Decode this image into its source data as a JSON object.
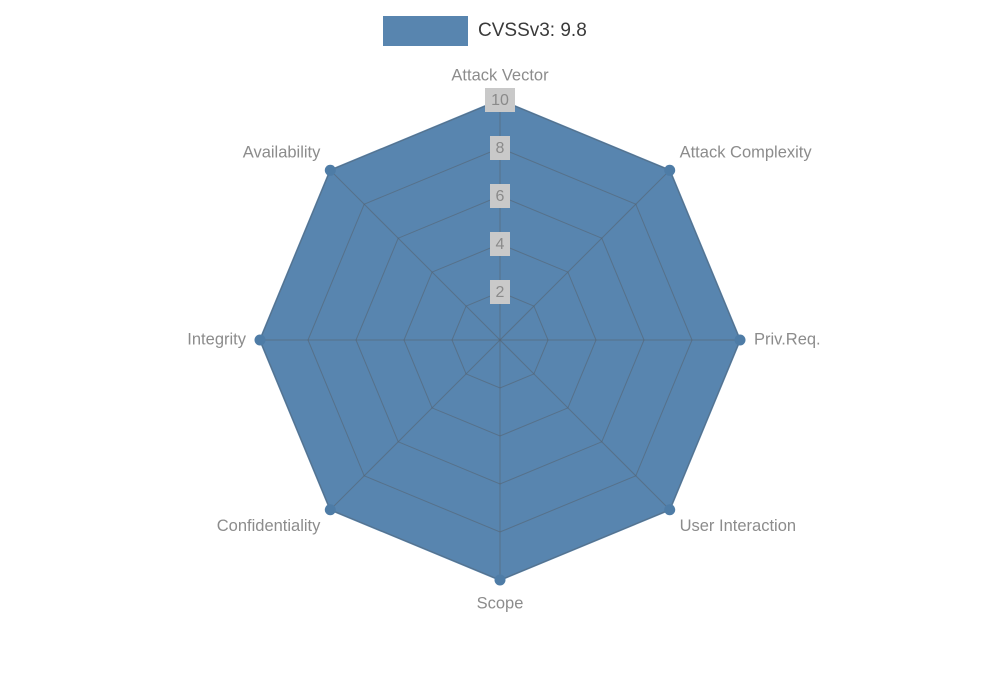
{
  "legend": {
    "label": "CVSSv3: 9.8"
  },
  "chart_data": {
    "type": "radar",
    "title": "CVSSv3: 9.8",
    "categories": [
      "Attack Vector",
      "Attack Complexity",
      "Priv.Req.",
      "User Interaction",
      "Scope",
      "Confidentiality",
      "Integrity",
      "Availability"
    ],
    "series": [
      {
        "name": "CVSSv3: 9.8",
        "values": [
          10,
          10,
          10,
          10,
          10,
          10,
          10,
          10
        ]
      }
    ],
    "max": 10,
    "ticks": [
      2,
      4,
      6,
      8,
      10
    ],
    "legend_position": "top",
    "grid": true,
    "colors": {
      "fill": "#5885AF",
      "point": "#4E7CA6",
      "grid": "#55606B",
      "axis_label": "#8C8C8C",
      "tick_text": "#8A8A8A",
      "tick_bg": "#C9C9C9",
      "legend_text": "#3A3A3A",
      "background": "#FFFFFF"
    }
  }
}
